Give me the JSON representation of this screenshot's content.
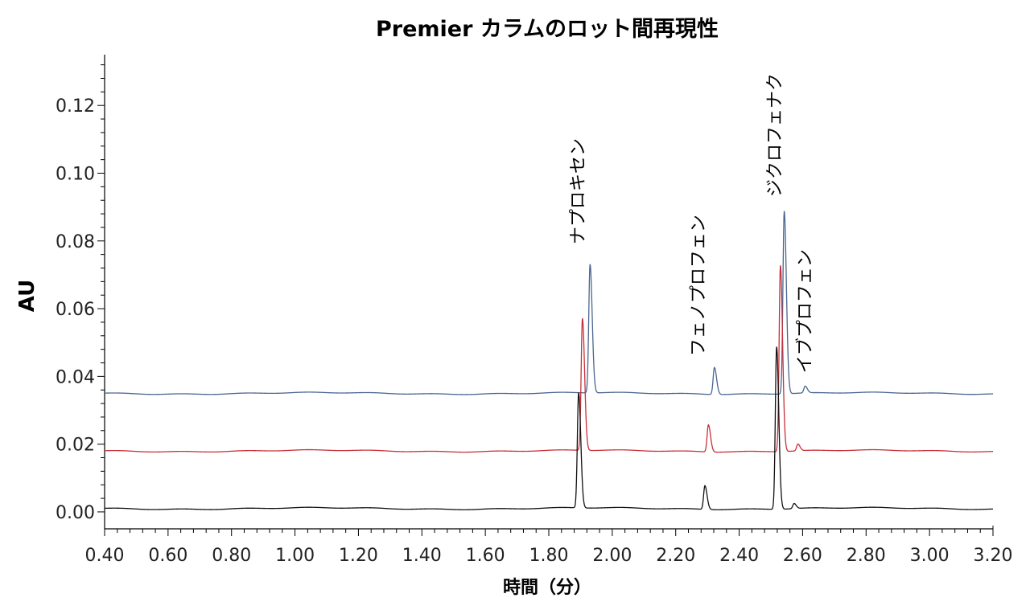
{
  "chart_data": {
    "type": "line",
    "title": "Premier カラムのロット間再現性",
    "xlabel": "時間（分）",
    "ylabel": "AU",
    "xlim": [
      0.4,
      3.2
    ],
    "ylim": [
      -0.005,
      0.135
    ],
    "x_ticks": [
      "0.40",
      "0.60",
      "0.80",
      "1.00",
      "1.20",
      "1.40",
      "1.60",
      "1.80",
      "2.00",
      "2.20",
      "2.40",
      "2.60",
      "2.80",
      "3.00",
      "3.20"
    ],
    "y_ticks": [
      "0.00",
      "0.02",
      "0.04",
      "0.06",
      "0.08",
      "0.10",
      "0.12"
    ],
    "grid": false,
    "colors": {
      "blue": "#4a6590",
      "red": "#c8303a",
      "black": "#111111"
    },
    "series": [
      {
        "color": "#4a6590",
        "baseline": 0.035,
        "peaks": [
          {
            "x": 1.93,
            "height": 0.038
          },
          {
            "x": 2.322,
            "height": 0.008
          },
          {
            "x": 2.542,
            "height": 0.054
          },
          {
            "x": 2.608,
            "height": 0.002
          }
        ]
      },
      {
        "color": "#c8303a",
        "baseline": 0.018,
        "peaks": [
          {
            "x": 1.906,
            "height": 0.039
          },
          {
            "x": 2.303,
            "height": 0.008
          },
          {
            "x": 2.53,
            "height": 0.055
          },
          {
            "x": 2.585,
            "height": 0.002
          }
        ]
      },
      {
        "color": "#111111",
        "baseline": 0.001,
        "peaks": [
          {
            "x": 1.894,
            "height": 0.034
          },
          {
            "x": 2.292,
            "height": 0.007
          },
          {
            "x": 2.518,
            "height": 0.048
          },
          {
            "x": 2.573,
            "height": 0.0015
          }
        ]
      }
    ],
    "annotations": [
      {
        "text": "ナプロキセン",
        "x": 1.91,
        "y": 0.079
      },
      {
        "text": "フェノプロフェン",
        "x": 2.29,
        "y": 0.046
      },
      {
        "text": "ジクロフェナク",
        "x": 2.53,
        "y": 0.093
      },
      {
        "text": "イブプロフェン",
        "x": 2.625,
        "y": 0.041
      }
    ]
  }
}
